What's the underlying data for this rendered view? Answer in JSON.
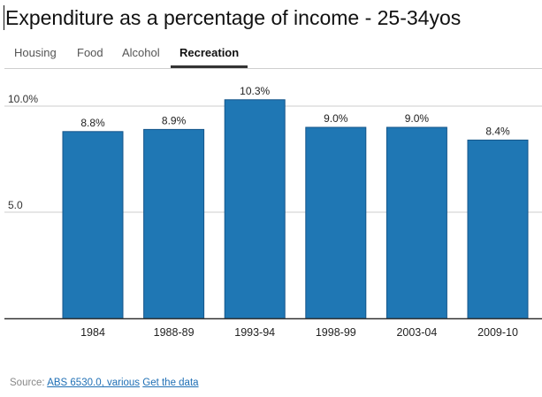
{
  "title": "Expenditure as a percentage of income - 25-34yos",
  "tabs": [
    {
      "label": "Housing",
      "active": false
    },
    {
      "label": "Food",
      "active": false
    },
    {
      "label": "Alcohol",
      "active": false
    },
    {
      "label": "Recreation",
      "active": true
    }
  ],
  "colors": {
    "bar": "#1f77b4",
    "bar_edge": "#15568a",
    "grid": "#cccccc",
    "axis": "#333333"
  },
  "chart_data": {
    "type": "bar",
    "categories": [
      "1984",
      "1988-89",
      "1993-94",
      "1998-99",
      "2003-04",
      "2009-10"
    ],
    "values": [
      8.8,
      8.9,
      10.3,
      9.0,
      9.0,
      8.4
    ],
    "value_labels": [
      "8.8%",
      "8.9%",
      "10.3%",
      "9.0%",
      "9.0%",
      "8.4%"
    ],
    "yticks": [
      5.0,
      10.0
    ],
    "ytick_labels": [
      "5.0",
      "10.0%"
    ],
    "ylim": [
      0,
      10.0
    ],
    "grid": true
  },
  "source": {
    "label": "Source:",
    "link1": "ABS 6530.0, various",
    "link2": "Get the data"
  }
}
